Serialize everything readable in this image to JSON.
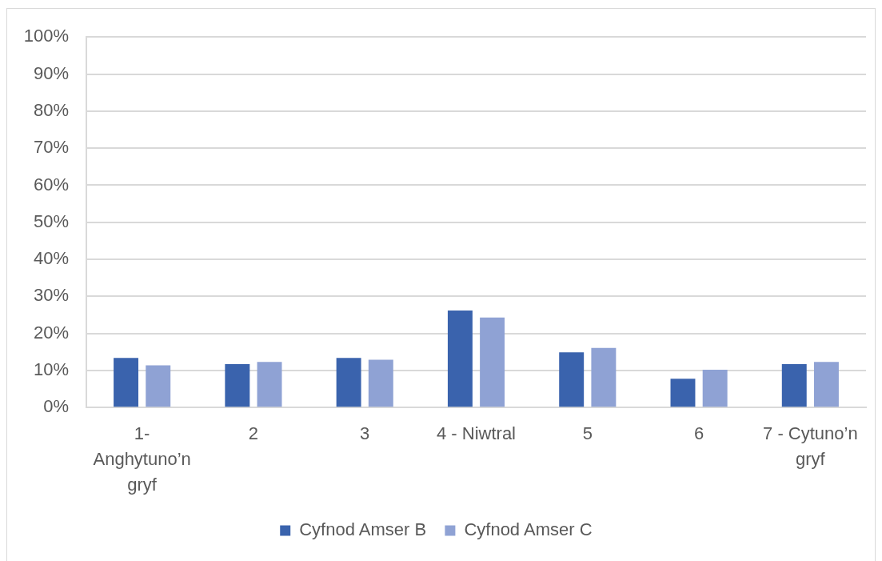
{
  "chart_data": {
    "type": "bar",
    "categories": [
      "1- Anghytuno’n gryf",
      "2",
      "3",
      "4 - Niwtral",
      "5",
      "6",
      "7 - Cytuno’n gryf"
    ],
    "series": [
      {
        "name": "Cyfnod Amser B",
        "color": "#3a63ad",
        "values": [
          13.4,
          11.7,
          13.4,
          26.2,
          14.9,
          7.8,
          11.7
        ]
      },
      {
        "name": "Cyfnod Amser C",
        "color": "#8fa2d4",
        "values": [
          11.4,
          12.3,
          12.9,
          24.3,
          16.1,
          10.2,
          12.3
        ]
      }
    ],
    "ylim": [
      0,
      100
    ],
    "yticks": [
      {
        "value": 0,
        "label": "0%"
      },
      {
        "value": 10,
        "label": "10%"
      },
      {
        "value": 20,
        "label": "20%"
      },
      {
        "value": 30,
        "label": "30%"
      },
      {
        "value": 40,
        "label": "40%"
      },
      {
        "value": 50,
        "label": "50%"
      },
      {
        "value": 60,
        "label": "60%"
      },
      {
        "value": 70,
        "label": "70%"
      },
      {
        "value": 80,
        "label": "80%"
      },
      {
        "value": 90,
        "label": "90%"
      },
      {
        "value": 100,
        "label": "100%"
      }
    ],
    "grid": "y",
    "legend": "bottom"
  }
}
